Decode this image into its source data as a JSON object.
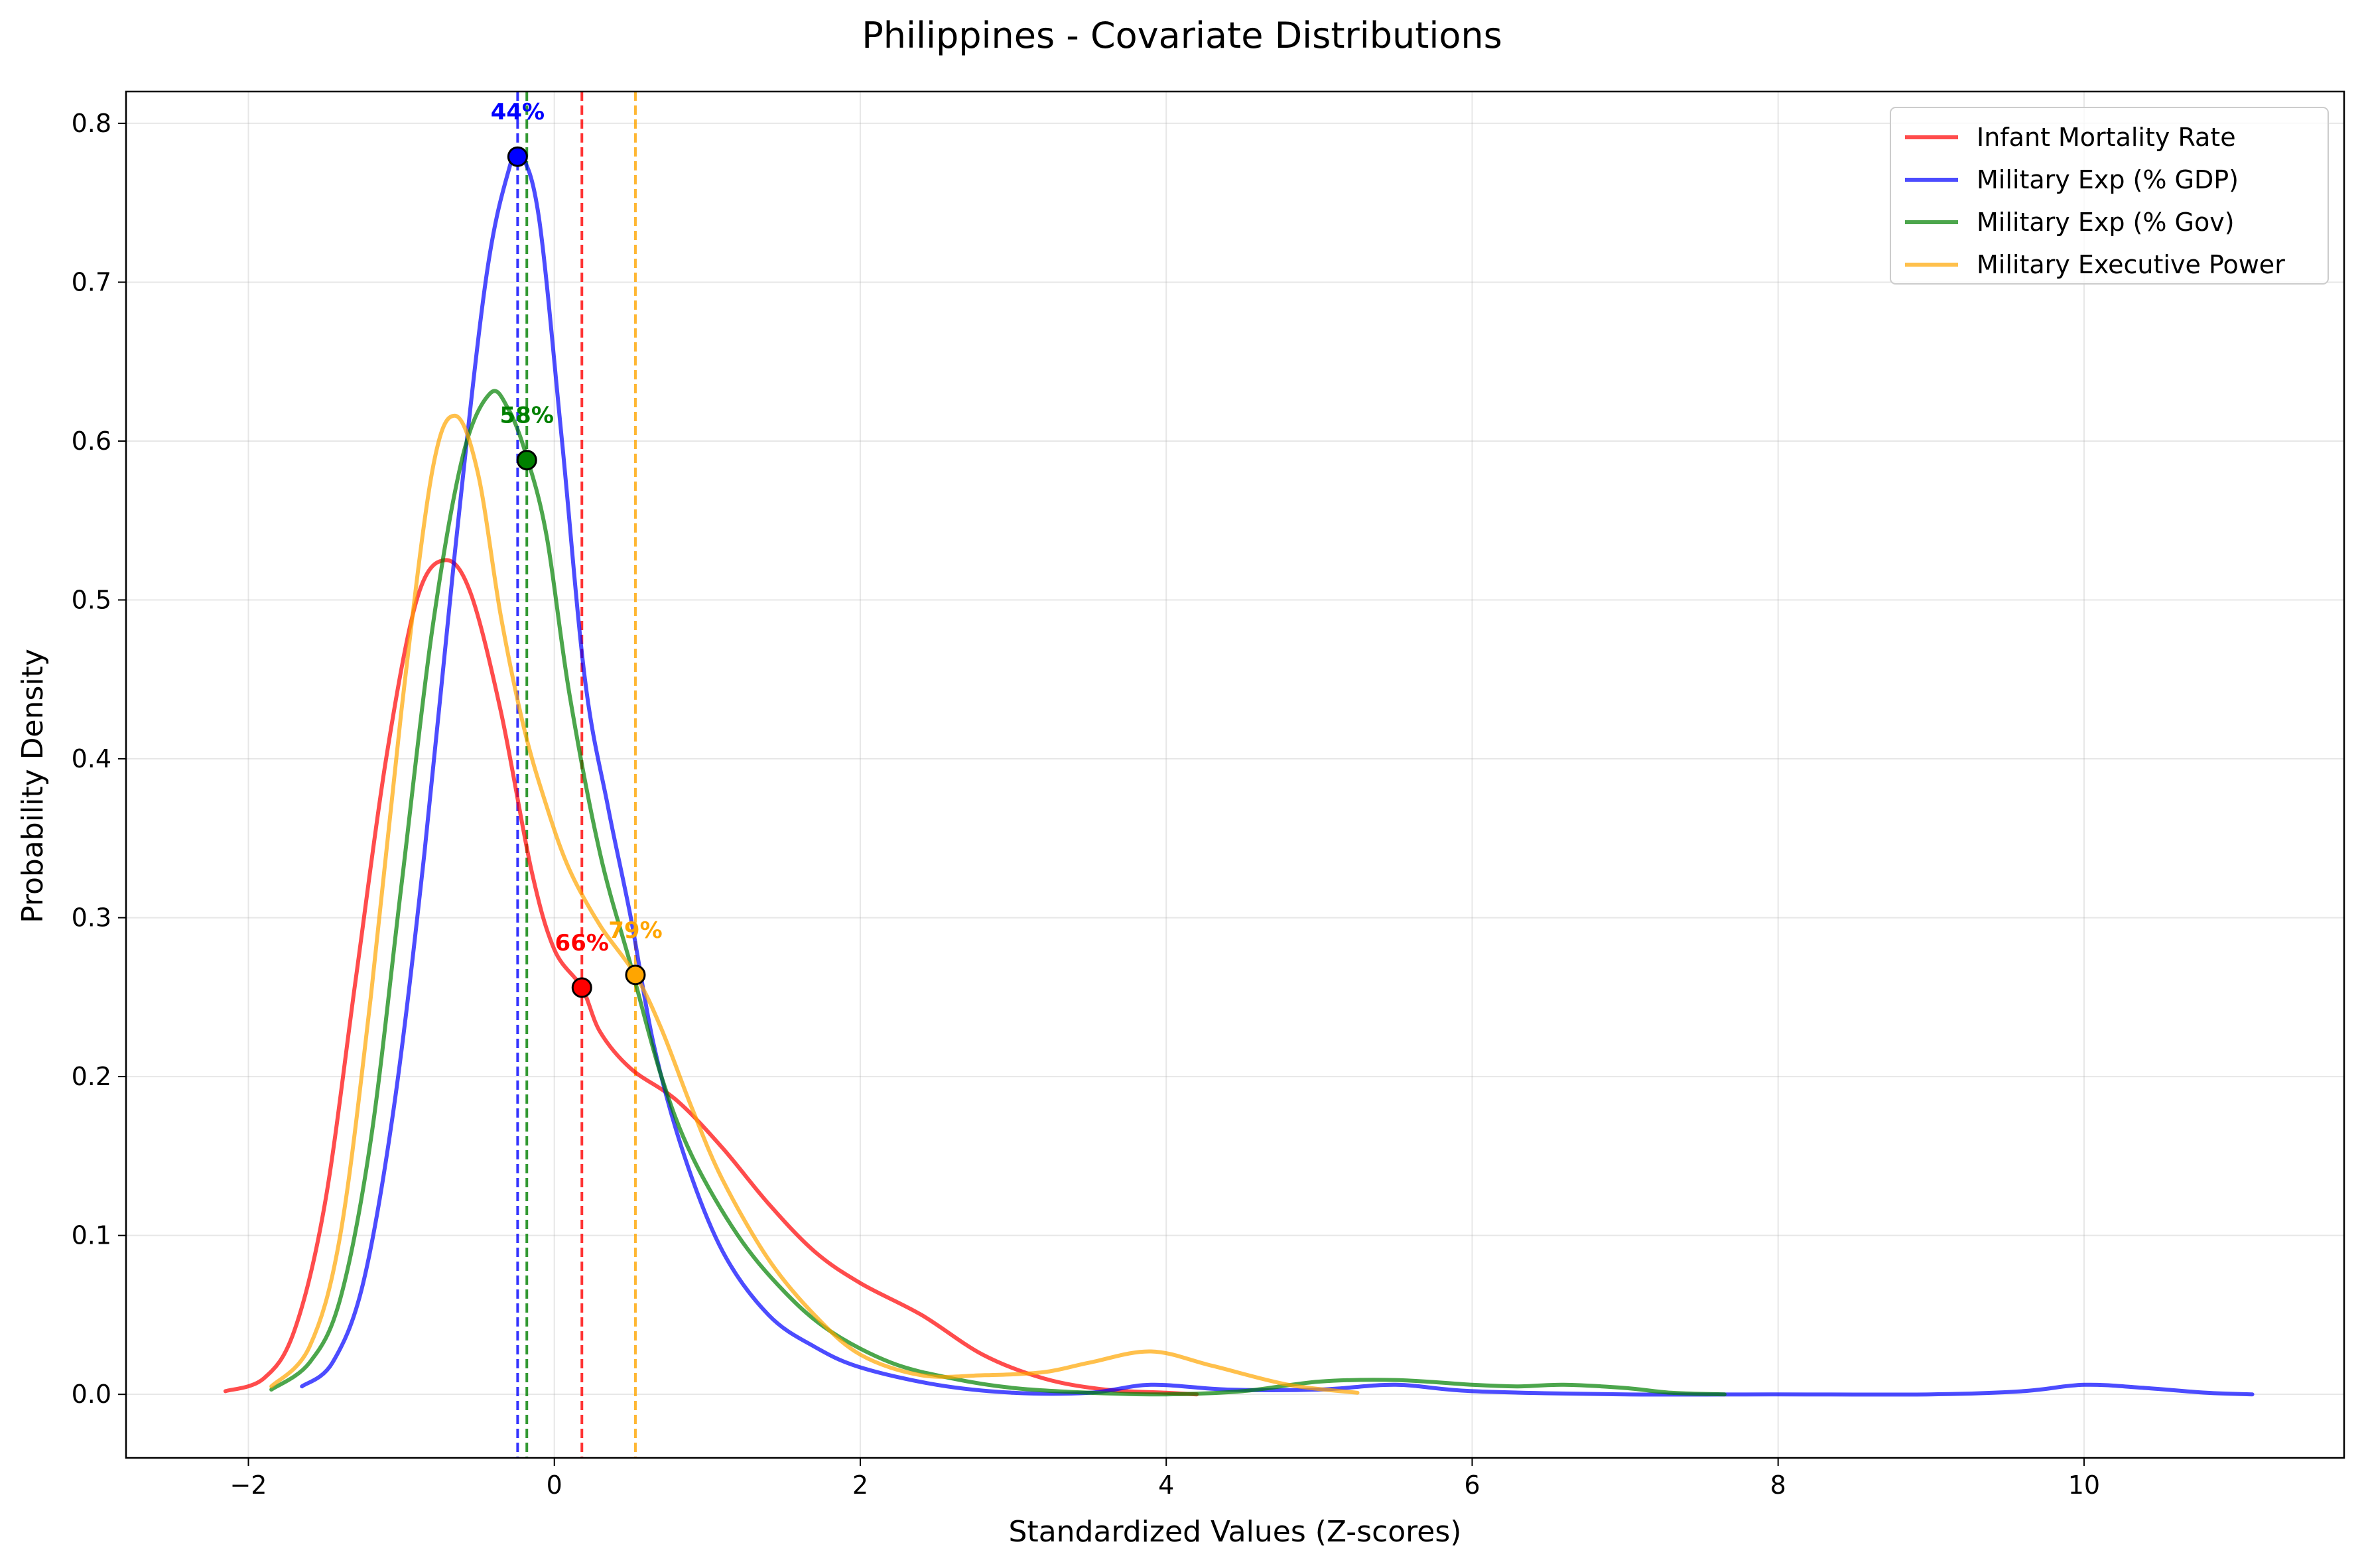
{
  "chart_data": {
    "type": "line",
    "title": "Philippines - Covariate Distributions",
    "xlabel": "Standardized Values (Z-scores)",
    "ylabel": "Probability Density",
    "xlim": [
      -2.8,
      11.7
    ],
    "ylim": [
      -0.04,
      0.82
    ],
    "xticks": [
      -2,
      0,
      2,
      4,
      6,
      8,
      10
    ],
    "xtick_labels": [
      "−2",
      "0",
      "2",
      "4",
      "6",
      "8",
      "10"
    ],
    "yticks": [
      0.0,
      0.1,
      0.2,
      0.3,
      0.4,
      0.5,
      0.6,
      0.7,
      0.8
    ],
    "ytick_labels": [
      "0.0",
      "0.1",
      "0.2",
      "0.3",
      "0.4",
      "0.5",
      "0.6",
      "0.7",
      "0.8"
    ],
    "grid": true,
    "legend_position": "top-right",
    "series": [
      {
        "name": "Infant Mortality Rate",
        "color": "#ff0000",
        "x": [
          -2.15,
          -1.9,
          -1.7,
          -1.5,
          -1.3,
          -1.1,
          -0.9,
          -0.72,
          -0.55,
          -0.35,
          -0.15,
          0.0,
          0.18,
          0.3,
          0.5,
          0.8,
          1.1,
          1.4,
          1.7,
          2.0,
          2.4,
          2.8,
          3.2,
          3.6,
          4.0,
          4.2
        ],
        "y": [
          0.002,
          0.01,
          0.04,
          0.12,
          0.26,
          0.4,
          0.5,
          0.525,
          0.505,
          0.43,
          0.33,
          0.28,
          0.256,
          0.228,
          0.205,
          0.185,
          0.155,
          0.12,
          0.09,
          0.07,
          0.05,
          0.025,
          0.01,
          0.003,
          0.001,
          0.0
        ],
        "marker": {
          "x": 0.18,
          "y": 0.256,
          "label": "66%"
        },
        "vline": 0.18
      },
      {
        "name": "Military Exp (% GDP)",
        "color": "#0000ff",
        "x": [
          -1.65,
          -1.45,
          -1.25,
          -1.05,
          -0.85,
          -0.65,
          -0.45,
          -0.3,
          -0.22,
          -0.1,
          0.05,
          0.2,
          0.35,
          0.5,
          0.65,
          0.85,
          1.1,
          1.4,
          1.7,
          2.0,
          2.5,
          3.0,
          3.5,
          3.9,
          4.4,
          5.0,
          5.5,
          6.0,
          7.0,
          8.0,
          9.0,
          9.6,
          10.0,
          10.4,
          10.8,
          11.1
        ],
        "y": [
          0.005,
          0.02,
          0.07,
          0.18,
          0.34,
          0.53,
          0.7,
          0.77,
          0.78,
          0.74,
          0.6,
          0.45,
          0.37,
          0.3,
          0.22,
          0.15,
          0.09,
          0.05,
          0.03,
          0.017,
          0.006,
          0.001,
          0.001,
          0.006,
          0.003,
          0.003,
          0.006,
          0.002,
          0.0,
          0.0,
          0.0,
          0.002,
          0.006,
          0.004,
          0.001,
          0.0
        ],
        "marker": {
          "x": -0.24,
          "y": 0.779,
          "label": "44%"
        },
        "vline": -0.24
      },
      {
        "name": "Military Exp (% Gov)",
        "color": "#008000",
        "x": [
          -1.85,
          -1.6,
          -1.4,
          -1.2,
          -1.0,
          -0.8,
          -0.6,
          -0.42,
          -0.3,
          -0.18,
          -0.05,
          0.1,
          0.3,
          0.5,
          0.7,
          0.9,
          1.2,
          1.5,
          1.8,
          2.2,
          2.6,
          3.0,
          3.5,
          4.0,
          4.5,
          5.0,
          5.5,
          6.0,
          6.3,
          6.6,
          7.0,
          7.3,
          7.65
        ],
        "y": [
          0.003,
          0.02,
          0.06,
          0.16,
          0.32,
          0.48,
          0.59,
          0.63,
          0.62,
          0.59,
          0.54,
          0.44,
          0.34,
          0.27,
          0.2,
          0.15,
          0.1,
          0.065,
          0.04,
          0.02,
          0.01,
          0.004,
          0.001,
          0.0,
          0.002,
          0.008,
          0.009,
          0.006,
          0.005,
          0.006,
          0.004,
          0.001,
          0.0
        ],
        "marker": {
          "x": -0.18,
          "y": 0.588,
          "label": "58%"
        },
        "vline": -0.18
      },
      {
        "name": "Military Executive Power",
        "color": "#ffa500",
        "x": [
          -1.85,
          -1.6,
          -1.4,
          -1.2,
          -1.0,
          -0.8,
          -0.65,
          -0.5,
          -0.35,
          -0.2,
          -0.05,
          0.1,
          0.3,
          0.53,
          0.7,
          0.9,
          1.1,
          1.4,
          1.7,
          2.0,
          2.4,
          2.8,
          3.2,
          3.5,
          3.9,
          4.3,
          4.8,
          5.25
        ],
        "y": [
          0.005,
          0.03,
          0.1,
          0.25,
          0.43,
          0.58,
          0.616,
          0.58,
          0.49,
          0.42,
          0.37,
          0.33,
          0.295,
          0.264,
          0.23,
          0.18,
          0.135,
          0.085,
          0.05,
          0.025,
          0.012,
          0.012,
          0.014,
          0.02,
          0.027,
          0.018,
          0.006,
          0.001
        ],
        "marker": {
          "x": 0.53,
          "y": 0.264,
          "label": "79%"
        },
        "vline": 0.53
      }
    ]
  }
}
